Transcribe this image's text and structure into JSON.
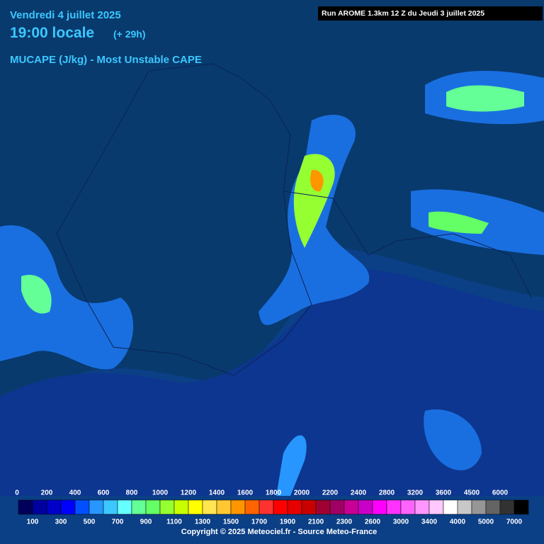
{
  "header": {
    "date": "Vendredi 4 juillet 2025",
    "time": "19:00 locale",
    "offset": "(+ 29h)",
    "product": "MUCAPE (J/kg) - Most Unstable CAPE"
  },
  "run": "Run AROME 1.3km 12 Z du Jeudi 3 juillet 2025",
  "legend": {
    "labels": [
      "0",
      "100",
      "200",
      "300",
      "400",
      "500",
      "600",
      "700",
      "800",
      "900",
      "1000",
      "1100",
      "1200",
      "1300",
      "1400",
      "1500",
      "1600",
      "1700",
      "1800",
      "1900",
      "2000",
      "2100",
      "2200",
      "2300",
      "2400",
      "2600",
      "2800",
      "3000",
      "3200",
      "3400",
      "3600",
      "4000",
      "4500",
      "5000",
      "6000",
      "7000"
    ],
    "colors": [
      "#00005a",
      "#0000a0",
      "#0000c8",
      "#0000ff",
      "#0050ff",
      "#2896ff",
      "#3cc8ff",
      "#64ffff",
      "#64ff96",
      "#64ff64",
      "#96ff32",
      "#c8ff00",
      "#ffff00",
      "#ffe650",
      "#ffc832",
      "#ff9600",
      "#ff6400",
      "#ff3232",
      "#ff0000",
      "#e60000",
      "#c80000",
      "#a00032",
      "#a00064",
      "#c80096",
      "#c800c8",
      "#ff00ff",
      "#ff32ff",
      "#ff64ff",
      "#ff96ff",
      "#ffc8ff",
      "#ffffff",
      "#c8c8c8",
      "#969696",
      "#646464",
      "#323232",
      "#000000"
    ]
  },
  "copyright": "Copyright © 2025 Meteociel.fr - Source Meteo-France"
}
